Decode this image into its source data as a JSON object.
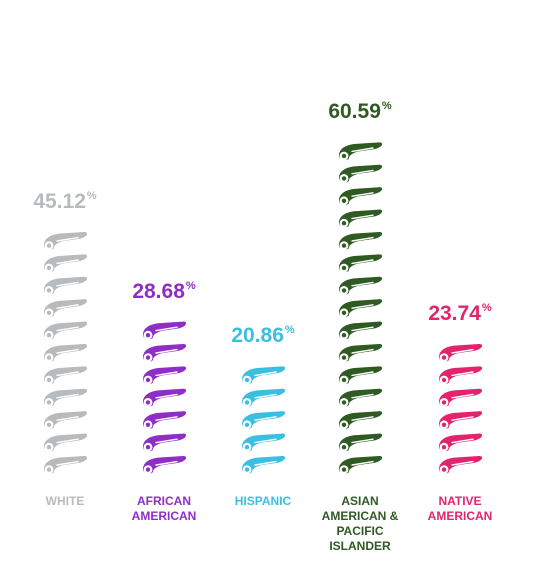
{
  "chart_data": {
    "type": "bar",
    "title": "",
    "unit_symbol": "%",
    "ylim": [
      0,
      66
    ],
    "categories": [
      {
        "label_lines": [
          "WHITE"
        ],
        "value": 45.12,
        "value_text": "45.12",
        "icons": 11,
        "color": "#b7bbbe"
      },
      {
        "label_lines": [
          "AFRICAN",
          "AMERICAN"
        ],
        "value": 28.68,
        "value_text": "28.68",
        "icons": 7,
        "color": "#8e2ec6"
      },
      {
        "label_lines": [
          "HISPANIC"
        ],
        "value": 20.86,
        "value_text": "20.86",
        "icons": 5,
        "color": "#3bbfe0"
      },
      {
        "label_lines": [
          "ASIAN",
          "AMERICAN &",
          "PACIFIC",
          "ISLANDER"
        ],
        "value": 60.59,
        "value_text": "60.59",
        "icons": 15,
        "color": "#2f5a23"
      },
      {
        "label_lines": [
          "NATIVE",
          "AMERICAN"
        ],
        "value": 23.74,
        "value_text": "23.74",
        "icons": 6,
        "color": "#e0246e"
      }
    ],
    "icon": "rolled-diploma-icon",
    "grid": false,
    "legend": "none"
  }
}
